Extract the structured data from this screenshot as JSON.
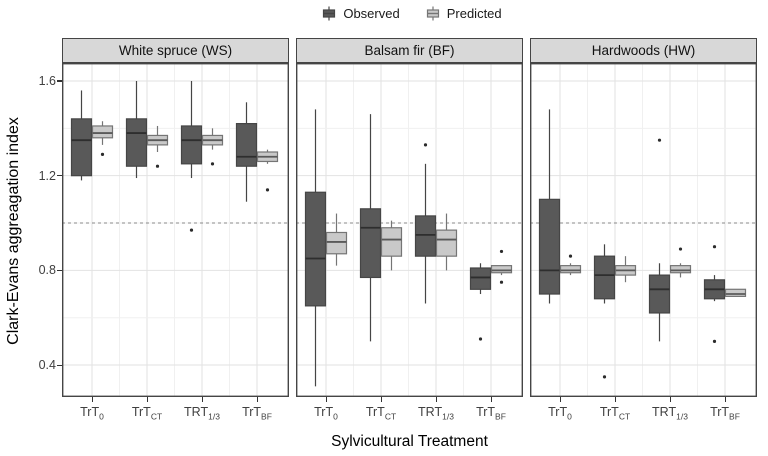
{
  "legend": {
    "items": [
      {
        "label": "Observed",
        "fill": "#595959",
        "stroke": "#454545"
      },
      {
        "label": "Predicted",
        "fill": "#c9c9c9",
        "stroke": "#757575"
      }
    ]
  },
  "colors": {
    "background": "#ffffff",
    "strip_fill": "#d8d8d8",
    "strip_border": "#454545",
    "panel_border": "#454545",
    "grid_major": "#e2e2e2",
    "grid_minor": "#f0f0f0",
    "reference_line": "#8a8a8a",
    "tick_text": "#404040",
    "outlier": "#2b2b2b",
    "observed_fill": "#595959",
    "observed_stroke": "#454545",
    "observed_median": "#2e2e2e",
    "predicted_fill": "#c9c9c9",
    "predicted_stroke": "#757575",
    "predicted_median": "#5a5a5a"
  },
  "chart_data": {
    "type": "boxplot",
    "xlabel": "Sylvicultural Treatment",
    "ylabel": "Clark-Evans aggreagation index",
    "ylim": [
      0.265,
      1.676
    ],
    "y_ticks": [
      {
        "value": 1.6,
        "label": "1.6"
      },
      {
        "value": 1.2,
        "label": "1.2"
      },
      {
        "value": 0.8,
        "label": "0.8"
      },
      {
        "value": 0.4,
        "label": "0.4"
      }
    ],
    "y_minor_ticks": [
      1.4,
      1.0,
      0.6
    ],
    "reference_line": 1.0,
    "legend_position": "top",
    "grid": true,
    "series_names": [
      "Observed",
      "Predicted"
    ],
    "categories": [
      {
        "base": "TrT",
        "sub": "0"
      },
      {
        "base": "TrT",
        "sub": "CT"
      },
      {
        "base": "TRT",
        "sub": "1/3"
      },
      {
        "base": "TrT",
        "sub": "BF"
      }
    ],
    "facets": [
      {
        "label": "White spruce (WS)",
        "groups": [
          {
            "observed": {
              "whislo": 1.18,
              "q1": 1.2,
              "med": 1.35,
              "q3": 1.44,
              "whishi": 1.56,
              "outliers": []
            },
            "predicted": {
              "whislo": 1.33,
              "q1": 1.36,
              "med": 1.38,
              "q3": 1.41,
              "whishi": 1.43,
              "outliers": [
                1.29
              ]
            }
          },
          {
            "observed": {
              "whislo": 1.19,
              "q1": 1.24,
              "med": 1.38,
              "q3": 1.44,
              "whishi": 1.6,
              "outliers": []
            },
            "predicted": {
              "whislo": 1.3,
              "q1": 1.33,
              "med": 1.35,
              "q3": 1.37,
              "whishi": 1.41,
              "outliers": [
                1.24
              ]
            }
          },
          {
            "observed": {
              "whislo": 1.19,
              "q1": 1.25,
              "med": 1.35,
              "q3": 1.41,
              "whishi": 1.6,
              "outliers": [
                0.97
              ]
            },
            "predicted": {
              "whislo": 1.31,
              "q1": 1.33,
              "med": 1.35,
              "q3": 1.37,
              "whishi": 1.4,
              "outliers": [
                1.25
              ]
            }
          },
          {
            "observed": {
              "whislo": 1.09,
              "q1": 1.24,
              "med": 1.28,
              "q3": 1.42,
              "whishi": 1.51,
              "outliers": []
            },
            "predicted": {
              "whislo": 1.25,
              "q1": 1.26,
              "med": 1.28,
              "q3": 1.3,
              "whishi": 1.31,
              "outliers": [
                1.14
              ]
            }
          }
        ]
      },
      {
        "label": "Balsam fir (BF)",
        "groups": [
          {
            "observed": {
              "whislo": 0.31,
              "q1": 0.65,
              "med": 0.85,
              "q3": 1.13,
              "whishi": 1.48,
              "outliers": []
            },
            "predicted": {
              "whislo": 0.82,
              "q1": 0.87,
              "med": 0.92,
              "q3": 0.96,
              "whishi": 1.04,
              "outliers": []
            }
          },
          {
            "observed": {
              "whislo": 0.5,
              "q1": 0.77,
              "med": 0.98,
              "q3": 1.06,
              "whishi": 1.46,
              "outliers": []
            },
            "predicted": {
              "whislo": 0.8,
              "q1": 0.86,
              "med": 0.93,
              "q3": 0.98,
              "whishi": 1.01,
              "outliers": []
            }
          },
          {
            "observed": {
              "whislo": 0.66,
              "q1": 0.86,
              "med": 0.95,
              "q3": 1.03,
              "whishi": 1.25,
              "outliers": [
                1.33
              ]
            },
            "predicted": {
              "whislo": 0.8,
              "q1": 0.86,
              "med": 0.93,
              "q3": 0.97,
              "whishi": 1.04,
              "outliers": []
            }
          },
          {
            "observed": {
              "whislo": 0.7,
              "q1": 0.72,
              "med": 0.77,
              "q3": 0.81,
              "whishi": 0.83,
              "outliers": [
                0.51
              ]
            },
            "predicted": {
              "whislo": 0.78,
              "q1": 0.79,
              "med": 0.8,
              "q3": 0.82,
              "whishi": 0.82,
              "outliers": [
                0.88,
                0.75
              ]
            }
          }
        ]
      },
      {
        "label": "Hardwoods (HW)",
        "groups": [
          {
            "observed": {
              "whislo": 0.66,
              "q1": 0.7,
              "med": 0.8,
              "q3": 1.1,
              "whishi": 1.48,
              "outliers": []
            },
            "predicted": {
              "whislo": 0.78,
              "q1": 0.79,
              "med": 0.8,
              "q3": 0.82,
              "whishi": 0.83,
              "outliers": [
                0.86
              ]
            }
          },
          {
            "observed": {
              "whislo": 0.66,
              "q1": 0.68,
              "med": 0.78,
              "q3": 0.86,
              "whishi": 0.91,
              "outliers": [
                0.35
              ]
            },
            "predicted": {
              "whislo": 0.75,
              "q1": 0.78,
              "med": 0.8,
              "q3": 0.82,
              "whishi": 0.86,
              "outliers": []
            }
          },
          {
            "observed": {
              "whislo": 0.5,
              "q1": 0.62,
              "med": 0.72,
              "q3": 0.78,
              "whishi": 0.83,
              "outliers": [
                1.35
              ]
            },
            "predicted": {
              "whislo": 0.77,
              "q1": 0.79,
              "med": 0.8,
              "q3": 0.82,
              "whishi": 0.83,
              "outliers": [
                0.89
              ]
            }
          },
          {
            "observed": {
              "whislo": 0.67,
              "q1": 0.68,
              "med": 0.72,
              "q3": 0.76,
              "whishi": 0.78,
              "outliers": [
                0.9,
                0.5
              ]
            },
            "predicted": {
              "whislo": 0.69,
              "q1": 0.69,
              "med": 0.7,
              "q3": 0.72,
              "whishi": 0.72,
              "outliers": []
            }
          }
        ]
      }
    ]
  }
}
